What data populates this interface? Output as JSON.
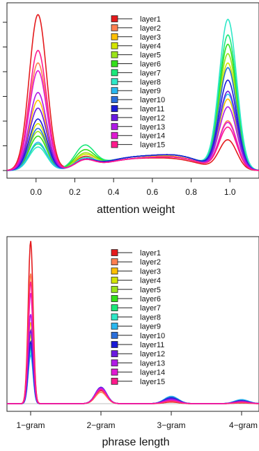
{
  "chart_data": [
    {
      "type": "line",
      "xlabel": "attention weight",
      "ylabel": "",
      "xlim": [
        -0.15,
        1.15
      ],
      "x_ticks": [
        0.0,
        0.2,
        0.4,
        0.6,
        0.8,
        1.0
      ],
      "x_tick_labels": [
        "0.0",
        "0.2",
        "0.4",
        "0.6",
        "0.8",
        "1.0"
      ],
      "y_tick_count": 7,
      "legend": "top-center",
      "series": [
        {
          "name": "layer1",
          "color": "#e41a1c",
          "values": [
            [
              0.01,
              1.0
            ],
            [
              0.25,
              0.07
            ],
            [
              0.5,
              0.07
            ],
            [
              0.75,
              0.05
            ],
            [
              0.99,
              0.19
            ]
          ]
        },
        {
          "name": "layer2",
          "color": "#ff7f50",
          "values": [
            [
              0.01,
              0.69
            ],
            [
              0.25,
              0.05
            ],
            [
              0.5,
              0.08
            ],
            [
              0.75,
              0.06
            ],
            [
              0.99,
              0.31
            ]
          ]
        },
        {
          "name": "layer3",
          "color": "#ffc000",
          "values": [
            [
              0.01,
              0.45
            ],
            [
              0.25,
              0.06
            ],
            [
              0.5,
              0.08
            ],
            [
              0.75,
              0.06
            ],
            [
              0.99,
              0.45
            ]
          ]
        },
        {
          "name": "layer4",
          "color": "#d4e600",
          "values": [
            [
              0.01,
              0.3
            ],
            [
              0.25,
              0.08
            ],
            [
              0.5,
              0.08
            ],
            [
              0.75,
              0.07
            ],
            [
              0.99,
              0.68
            ]
          ]
        },
        {
          "name": "layer5",
          "color": "#9be41a",
          "values": [
            [
              0.01,
              0.25
            ],
            [
              0.25,
              0.09
            ],
            [
              0.5,
              0.08
            ],
            [
              0.75,
              0.07
            ],
            [
              0.99,
              0.74
            ]
          ]
        },
        {
          "name": "layer6",
          "color": "#33e01a",
          "values": [
            [
              0.01,
              0.22
            ],
            [
              0.25,
              0.11
            ],
            [
              0.5,
              0.08
            ],
            [
              0.75,
              0.07
            ],
            [
              0.99,
              0.8
            ]
          ]
        },
        {
          "name": "layer7",
          "color": "#1ae87a",
          "values": [
            [
              0.01,
              0.17
            ],
            [
              0.25,
              0.14
            ],
            [
              0.5,
              0.08
            ],
            [
              0.75,
              0.07
            ],
            [
              0.99,
              0.86
            ]
          ]
        },
        {
          "name": "layer8",
          "color": "#2ee8c8",
          "values": [
            [
              0.01,
              0.15
            ],
            [
              0.25,
              0.06
            ],
            [
              0.5,
              0.08
            ],
            [
              0.75,
              0.07
            ],
            [
              0.99,
              0.96
            ]
          ]
        },
        {
          "name": "layer9",
          "color": "#29b8f0",
          "values": [
            [
              0.01,
              0.18
            ],
            [
              0.25,
              0.05
            ],
            [
              0.5,
              0.08
            ],
            [
              0.75,
              0.07
            ],
            [
              0.99,
              0.48
            ]
          ]
        },
        {
          "name": "layer10",
          "color": "#2a6fdb",
          "values": [
            [
              0.01,
              0.27
            ],
            [
              0.25,
              0.05
            ],
            [
              0.5,
              0.08
            ],
            [
              0.75,
              0.07
            ],
            [
              0.99,
              0.65
            ]
          ]
        },
        {
          "name": "layer11",
          "color": "#1a1ad6",
          "values": [
            [
              0.01,
              0.33
            ],
            [
              0.25,
              0.05
            ],
            [
              0.5,
              0.08
            ],
            [
              0.75,
              0.07
            ],
            [
              0.99,
              0.57
            ]
          ]
        },
        {
          "name": "layer12",
          "color": "#6a1ae0",
          "values": [
            [
              0.01,
              0.4
            ],
            [
              0.25,
              0.05
            ],
            [
              0.5,
              0.07
            ],
            [
              0.75,
              0.06
            ],
            [
              0.99,
              0.5
            ]
          ]
        },
        {
          "name": "layer13",
          "color": "#b01ae6",
          "values": [
            [
              0.01,
              0.5
            ],
            [
              0.25,
              0.05
            ],
            [
              0.5,
              0.07
            ],
            [
              0.75,
              0.06
            ],
            [
              0.99,
              0.4
            ]
          ]
        },
        {
          "name": "layer14",
          "color": "#e01ad2",
          "values": [
            [
              0.01,
              0.64
            ],
            [
              0.25,
              0.05
            ],
            [
              0.5,
              0.07
            ],
            [
              0.75,
              0.06
            ],
            [
              0.99,
              0.3
            ]
          ]
        },
        {
          "name": "layer15",
          "color": "#ff1a8c",
          "values": [
            [
              0.01,
              0.77
            ],
            [
              0.25,
              0.05
            ],
            [
              0.5,
              0.07
            ],
            [
              0.75,
              0.06
            ],
            [
              0.99,
              0.27
            ]
          ]
        }
      ]
    },
    {
      "type": "line",
      "xlabel": "phrase length",
      "ylabel": "",
      "categories": [
        "1−gram",
        "2−gram",
        "3−gram",
        "4−gram"
      ],
      "legend": "top-center",
      "series": [
        {
          "name": "layer1",
          "color": "#e41a1c",
          "values": [
            1.0,
            0.08,
            0.01,
            0.005
          ]
        },
        {
          "name": "layer2",
          "color": "#ff7f50",
          "values": [
            0.8,
            0.07,
            0.015,
            0.008
          ]
        },
        {
          "name": "layer3",
          "color": "#ffc000",
          "values": [
            0.5,
            0.085,
            0.02,
            0.01
          ]
        },
        {
          "name": "layer4",
          "color": "#d4e600",
          "values": [
            0.42,
            0.09,
            0.02,
            0.01
          ]
        },
        {
          "name": "layer5",
          "color": "#9be41a",
          "values": [
            0.38,
            0.09,
            0.025,
            0.012
          ]
        },
        {
          "name": "layer6",
          "color": "#33e01a",
          "values": [
            0.36,
            0.095,
            0.025,
            0.012
          ]
        },
        {
          "name": "layer7",
          "color": "#1ae87a",
          "values": [
            0.34,
            0.095,
            0.03,
            0.015
          ]
        },
        {
          "name": "layer8",
          "color": "#2ee8c8",
          "values": [
            0.32,
            0.1,
            0.035,
            0.018
          ]
        },
        {
          "name": "layer9",
          "color": "#29b8f0",
          "values": [
            0.3,
            0.1,
            0.045,
            0.025
          ]
        },
        {
          "name": "layer10",
          "color": "#2a6fdb",
          "values": [
            0.35,
            0.1,
            0.04,
            0.02
          ]
        },
        {
          "name": "layer11",
          "color": "#1a1ad6",
          "values": [
            0.38,
            0.1,
            0.035,
            0.018
          ]
        },
        {
          "name": "layer12",
          "color": "#6a1ae0",
          "values": [
            0.45,
            0.1,
            0.03,
            0.015
          ]
        },
        {
          "name": "layer13",
          "color": "#b01ae6",
          "values": [
            0.55,
            0.095,
            0.025,
            0.012
          ]
        },
        {
          "name": "layer14",
          "color": "#e01ad2",
          "values": [
            0.68,
            0.09,
            0.02,
            0.01
          ]
        },
        {
          "name": "layer15",
          "color": "#ff1a8c",
          "values": [
            0.75,
            0.085,
            0.018,
            0.01
          ]
        }
      ]
    }
  ]
}
